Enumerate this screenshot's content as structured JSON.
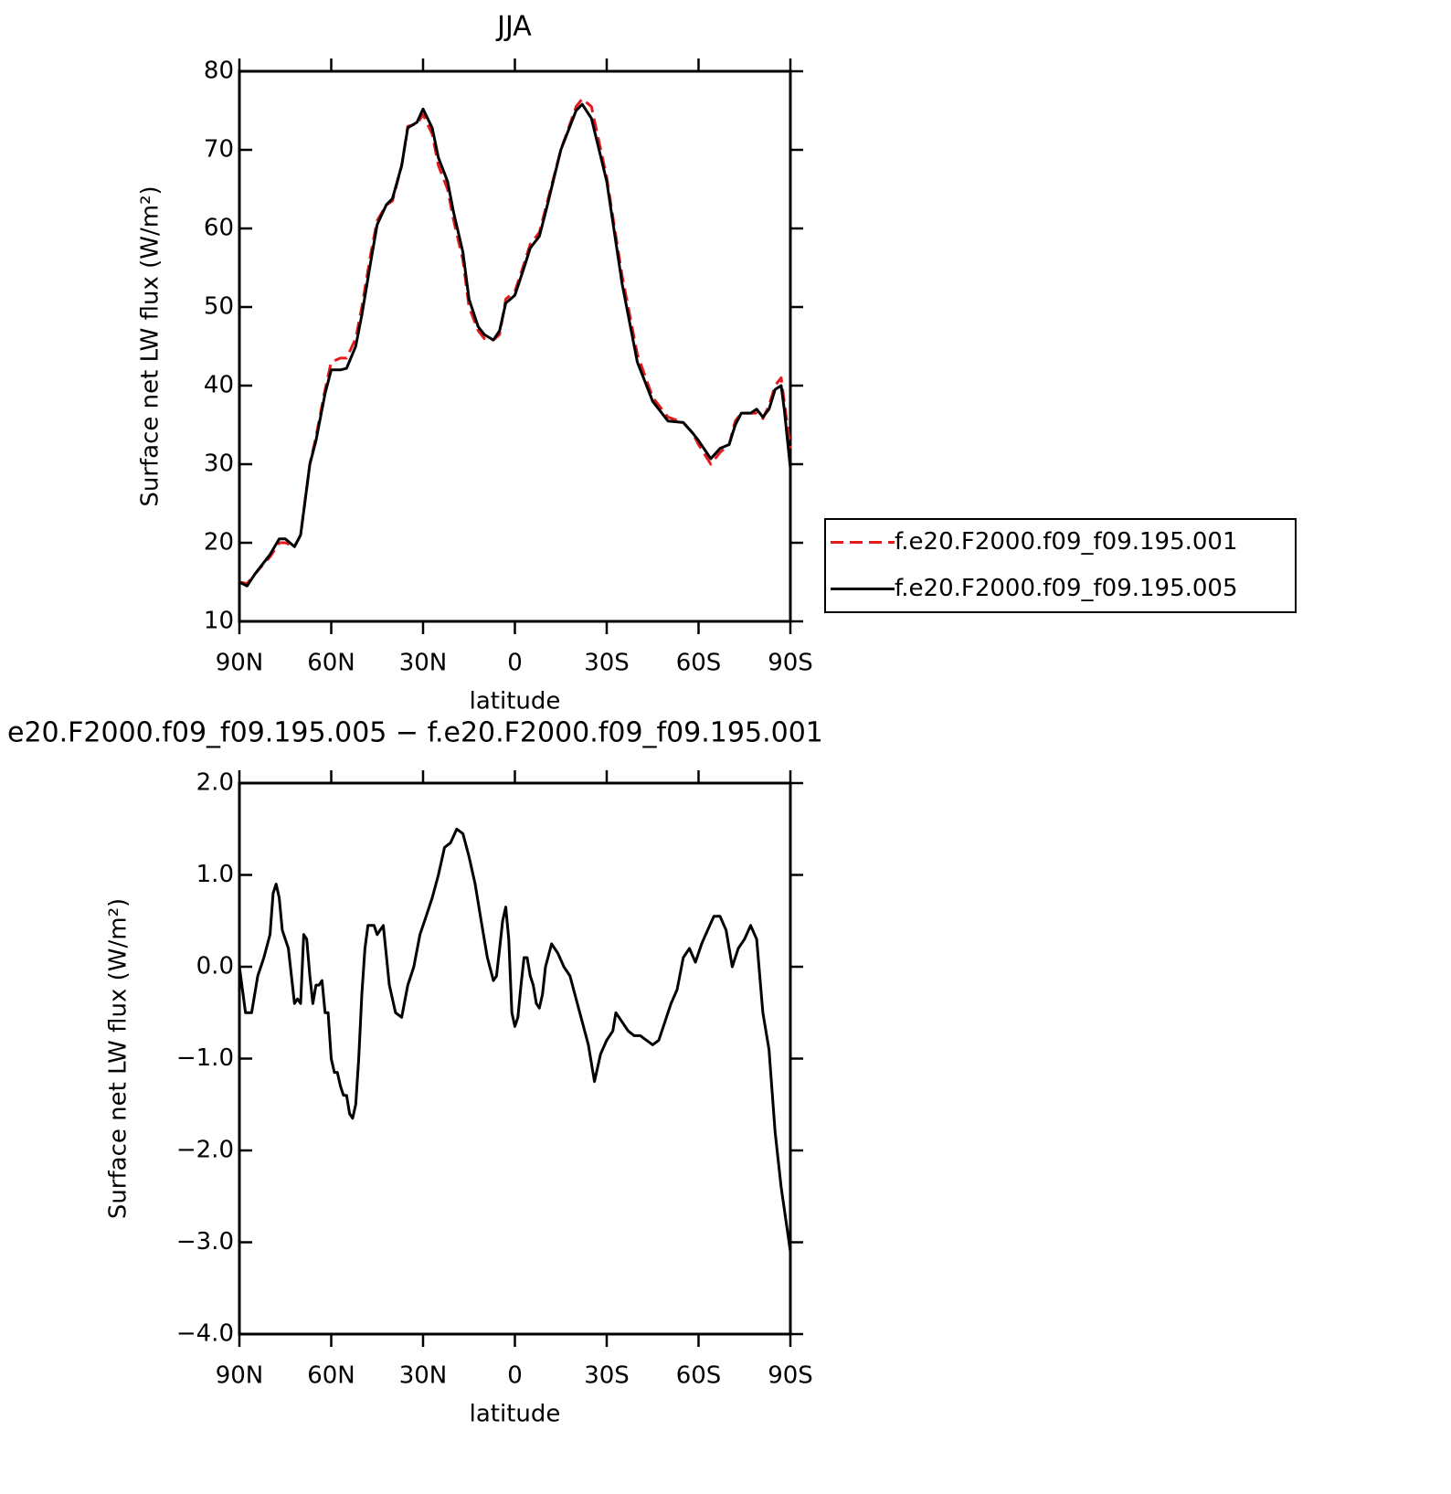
{
  "chart_data": [
    {
      "type": "line",
      "title": "JJA",
      "xlabel": "latitude",
      "ylabel": "Surface net LW flux (W/m²)",
      "xlim": [
        90,
        -90
      ],
      "xticks": [
        {
          "value": 90,
          "label": "90N"
        },
        {
          "value": 60,
          "label": "60N"
        },
        {
          "value": 30,
          "label": "30N"
        },
        0,
        {
          "value": -30,
          "label": "30S"
        },
        {
          "value": -60,
          "label": "60S"
        },
        {
          "value": -90,
          "label": "90S"
        }
      ],
      "ylim": [
        10,
        80
      ],
      "yticks": [
        10,
        20,
        30,
        40,
        50,
        60,
        70,
        80
      ],
      "legend": "right",
      "x": [
        90,
        87.5,
        85,
        80,
        77,
        75,
        72,
        70,
        67,
        65,
        62,
        60,
        57,
        55,
        52,
        50,
        47,
        45,
        42,
        40,
        37,
        35,
        32,
        30,
        27,
        25,
        22,
        20,
        17,
        15,
        12,
        10,
        7,
        5,
        3,
        0,
        -3,
        -5,
        -8,
        -10,
        -15,
        -20,
        -22,
        -25,
        -30,
        -35,
        -40,
        -45,
        -50,
        -55,
        -58,
        -60,
        -64,
        -67,
        -70,
        -72,
        -74,
        -77,
        -79,
        -81,
        -83,
        -85,
        -87,
        -88,
        -90
      ],
      "series": [
        {
          "name": "f.e20.F2000.f09_f09.195.001",
          "color": "#e41a1c",
          "dash": "dashed",
          "values": [
            15,
            14.8,
            16,
            18.2,
            20,
            20,
            19.5,
            21,
            30,
            33.5,
            39.5,
            43,
            43.5,
            43.5,
            46,
            50,
            57,
            61,
            63,
            63.5,
            68,
            73,
            73.3,
            74.5,
            72,
            68,
            65,
            61,
            56,
            50,
            47,
            46,
            45.8,
            46.5,
            51,
            52,
            55.5,
            58,
            59.5,
            62.5,
            70,
            75.5,
            76.5,
            75.5,
            66.5,
            54,
            44,
            38.5,
            36,
            35.3,
            34,
            32.5,
            30,
            31.5,
            32.5,
            35.5,
            36.5,
            36.5,
            36.5,
            35.8,
            37.5,
            40,
            41,
            38,
            32
          ]
        },
        {
          "name": "f.e20.F2000.f09_f09.195.005",
          "color": "#000000",
          "dash": "solid",
          "values": [
            15,
            14.5,
            16,
            18.5,
            20.5,
            20.5,
            19.5,
            21,
            30,
            33,
            39,
            42,
            42,
            42.2,
            45,
            49,
            56,
            60.5,
            63,
            63.8,
            68,
            72.8,
            73.5,
            75.2,
            72.8,
            69,
            66,
            62,
            57,
            51,
            47.5,
            46.5,
            45.8,
            47,
            50.5,
            51.5,
            55,
            57.5,
            59,
            62,
            70,
            75,
            75.8,
            74,
            66,
            53,
            43,
            38,
            35.5,
            35.3,
            34,
            33,
            30.7,
            32,
            32.5,
            35,
            36.5,
            36.5,
            37,
            36,
            37,
            39.5,
            40,
            37,
            29.5
          ]
        }
      ]
    },
    {
      "type": "line",
      "title": "e20.F2000.f09_f09.195.005 − f.e20.F2000.f09_f09.195.001",
      "xlabel": "latitude",
      "ylabel": "Surface net LW flux (W/m²)",
      "xlim": [
        90,
        -90
      ],
      "xticks": [
        {
          "value": 90,
          "label": "90N"
        },
        {
          "value": 60,
          "label": "60N"
        },
        {
          "value": 30,
          "label": "30N"
        },
        0,
        {
          "value": -30,
          "label": "30S"
        },
        {
          "value": -60,
          "label": "60S"
        },
        {
          "value": -90,
          "label": "90S"
        }
      ],
      "ylim": [
        -4,
        2
      ],
      "yticks": [
        {
          "value": -4,
          "label": "−4.0"
        },
        {
          "value": -3,
          "label": "−3.0"
        },
        {
          "value": -2,
          "label": "−2.0"
        },
        {
          "value": -1,
          "label": "−1.0"
        },
        {
          "value": 0,
          "label": "0.0"
        },
        {
          "value": 1,
          "label": "1.0"
        },
        {
          "value": 2,
          "label": "2.0"
        }
      ],
      "color": "#000000",
      "x": [
        90,
        88,
        86,
        84,
        82,
        80,
        79,
        78,
        77,
        76,
        74,
        72,
        71,
        70,
        69,
        68,
        67,
        66,
        65,
        64,
        63,
        62,
        61,
        60,
        59,
        58,
        57,
        56,
        55,
        54,
        53,
        52,
        51,
        50,
        49,
        48,
        47,
        46,
        45,
        44,
        43,
        41,
        39,
        37,
        35,
        33,
        31,
        29,
        27,
        25,
        23,
        21,
        19,
        17,
        15,
        13,
        11,
        9,
        7,
        6,
        5,
        4,
        3,
        2,
        1,
        0,
        -1,
        -2,
        -3,
        -4,
        -5,
        -6,
        -7,
        -8,
        -9,
        -10,
        -12,
        -14,
        -16,
        -18,
        -20,
        -22,
        -24,
        -26,
        -28,
        -30,
        -32,
        -33,
        -35,
        -37,
        -39,
        -41,
        -43,
        -45,
        -47,
        -49,
        -51,
        -53,
        -55,
        -57,
        -59,
        -61,
        -63,
        -65,
        -67,
        -69,
        -71,
        -73,
        -75,
        -77,
        -79,
        -81,
        -83,
        -85,
        -87,
        -90
      ],
      "values": [
        0.0,
        -0.5,
        -0.5,
        -0.1,
        0.1,
        0.35,
        0.8,
        0.9,
        0.75,
        0.4,
        0.2,
        -0.4,
        -0.35,
        -0.4,
        0.35,
        0.3,
        -0.1,
        -0.4,
        -0.2,
        -0.2,
        -0.15,
        -0.5,
        -0.5,
        -1.0,
        -1.15,
        -1.15,
        -1.3,
        -1.4,
        -1.4,
        -1.6,
        -1.65,
        -1.5,
        -1.0,
        -0.3,
        0.2,
        0.45,
        0.45,
        0.45,
        0.35,
        0.4,
        0.45,
        -0.2,
        -0.5,
        -0.55,
        -0.2,
        0.0,
        0.35,
        0.55,
        0.75,
        1.0,
        1.3,
        1.35,
        1.5,
        1.45,
        1.2,
        0.9,
        0.5,
        0.1,
        -0.15,
        -0.1,
        0.2,
        0.5,
        0.65,
        0.3,
        -0.5,
        -0.65,
        -0.55,
        -0.2,
        0.1,
        0.1,
        -0.1,
        -0.2,
        -0.4,
        -0.45,
        -0.3,
        0.0,
        0.25,
        0.15,
        0.0,
        -0.1,
        -0.35,
        -0.6,
        -0.85,
        -1.25,
        -0.95,
        -0.8,
        -0.7,
        -0.5,
        -0.6,
        -0.7,
        -0.75,
        -0.75,
        -0.8,
        -0.85,
        -0.8,
        -0.6,
        -0.4,
        -0.25,
        0.1,
        0.2,
        0.05,
        0.25,
        0.4,
        0.55,
        0.55,
        0.4,
        0.0,
        0.2,
        0.3,
        0.45,
        0.3,
        -0.5,
        -0.9,
        -1.8,
        -2.4,
        -3.1
      ]
    }
  ]
}
